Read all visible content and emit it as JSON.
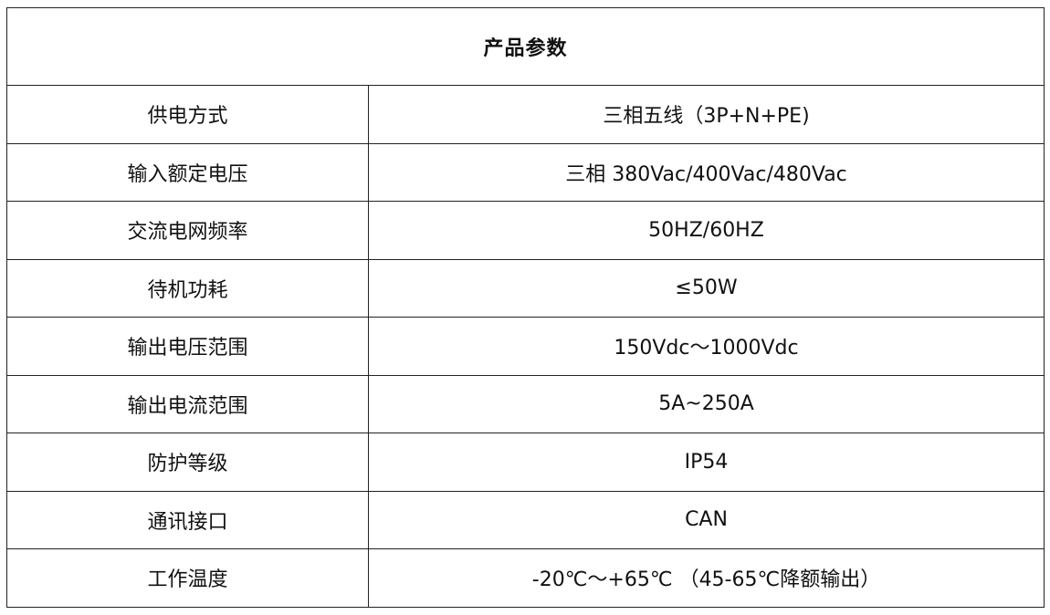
{
  "title": "产品参数",
  "rows": [
    {
      "label": "供电方式",
      "value": "三相五线（3P+N+PE)"
    },
    {
      "label": "输入额定电压",
      "value": "三相 380Vac/400Vac/480Vac"
    },
    {
      "label": "交流电网频率",
      "value": "50HZ/60HZ"
    },
    {
      "label": "待机功耗",
      "value": "≤50W"
    },
    {
      "label": "输出电压范围",
      "value": "150Vdc～1000Vdc"
    },
    {
      "label": "输出电流范围",
      "value": "5A~250A"
    },
    {
      "label": "防护等级",
      "value": "IP54"
    },
    {
      "label": "通讯接口",
      "value": "CAN"
    },
    {
      "label": "工作温度",
      "value": "-20℃～+65℃ （45-65℃降额输出）"
    }
  ]
}
